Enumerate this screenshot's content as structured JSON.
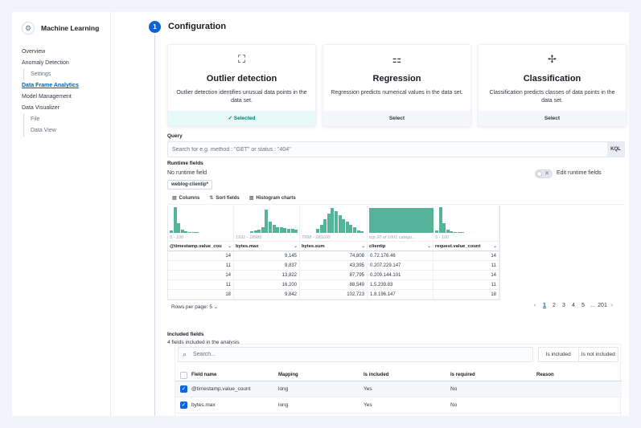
{
  "app": {
    "title": "Machine Learning",
    "logo_icon": "ml-logo-icon"
  },
  "sidebar": {
    "items": [
      {
        "label": "Overview",
        "level": 0
      },
      {
        "label": "Anomaly Detection",
        "level": 0
      },
      {
        "label": "Settings",
        "level": 1
      },
      {
        "label": "Data Frame Analytics",
        "level": 0,
        "active": true
      },
      {
        "label": "Model Management",
        "level": 0
      },
      {
        "label": "Data Visualizer",
        "level": 0
      },
      {
        "label": "File",
        "level": 1
      },
      {
        "label": "Data View",
        "level": 1
      }
    ]
  },
  "step": {
    "number": "1",
    "title": "Configuration"
  },
  "job_types": [
    {
      "title": "Outlier detection",
      "description": "Outlier detection identifies unusual data points in the data set.",
      "footer": "Selected",
      "selected": true,
      "icon": "outlier-icon"
    },
    {
      "title": "Regression",
      "description": "Regression predicts numerical values in the data set.",
      "footer": "Select",
      "selected": false,
      "icon": "regression-icon"
    },
    {
      "title": "Classification",
      "description": "Classification predicts classes of data points in the data set.",
      "footer": "Select",
      "selected": false,
      "icon": "classification-icon"
    }
  ],
  "selected_check": "✓",
  "query": {
    "label": "Query",
    "placeholder": "Search for e.g. method : \"GET\" or status : \"404\"",
    "value": "",
    "language_badge": "KQL"
  },
  "runtime": {
    "label": "Runtime fields",
    "status": "No runtime field",
    "toggle_label": "Edit runtime fields",
    "data_view_badge": "weblog-clientip*"
  },
  "grid": {
    "toolbar": {
      "columns": "Columns",
      "sort": "Sort fields",
      "histogram": "Histogram charts"
    },
    "columns": [
      {
        "name": "@timestamp.value_cou",
        "range": "5 - 100",
        "type": "num"
      },
      {
        "name": "bytes.max",
        "range": "1931 - 18986",
        "type": "num"
      },
      {
        "name": "bytes.sum",
        "range": "7998 - 183100",
        "type": "num"
      },
      {
        "name": "clientip",
        "range": "top 20 of 1001 catego...",
        "type": "text"
      },
      {
        "name": "request.value_count",
        "range": "5 - 100",
        "type": "num"
      }
    ],
    "rows": [
      [
        "14",
        "9,145",
        "74,808",
        "0.72.176.46",
        "14"
      ],
      [
        "11",
        "9,837",
        "43,395",
        "0.207.229.147",
        "11"
      ],
      [
        "14",
        "13,822",
        "87,795",
        "0.209.144.101",
        "14"
      ],
      [
        "11",
        "16,200",
        "88,549",
        "1.5.239.83",
        "11"
      ],
      [
        "18",
        "9,842",
        "102,723",
        "1.8.196.147",
        "18"
      ]
    ],
    "rows_per_page": "Rows per page: 5",
    "pagination": {
      "pages": [
        "1",
        "2",
        "3",
        "4",
        "5",
        "...",
        "201"
      ],
      "current": "1",
      "prev": "‹",
      "next": "›"
    }
  },
  "included": {
    "label": "Included fields",
    "count_text": "4 fields included in the analysis",
    "search_placeholder": "Search...",
    "filters": [
      "Is included",
      "Is not included"
    ],
    "headers": [
      "Field name",
      "Mapping",
      "Is included",
      "Is required",
      "Reason"
    ],
    "rows": [
      {
        "field": "@timestamp.value_count",
        "mapping": "long",
        "included": "Yes",
        "required": "No",
        "reason": "",
        "checked": true
      },
      {
        "field": "bytes.max",
        "mapping": "long",
        "included": "Yes",
        "required": "No",
        "reason": "",
        "checked": true
      }
    ]
  },
  "colors": {
    "accent": "#0b64dd",
    "histogram": "#54b399",
    "selected_bg": "#e6f9f7",
    "selected_text": "#017d73"
  }
}
